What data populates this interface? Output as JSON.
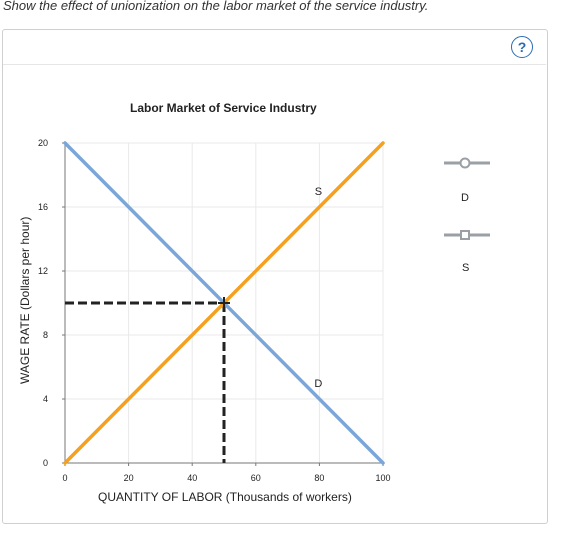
{
  "instruction": "Show the effect of unionization on the labor market of the service industry.",
  "help_label": "?",
  "legend": [
    {
      "label": "D",
      "color": "#8fb0d8",
      "marker": "circle"
    },
    {
      "label": "S",
      "color": "#f5a623",
      "marker": "square"
    }
  ],
  "colors": {
    "demand": "#7aa6d9",
    "supply": "#f5a01e",
    "equilibrium_lines": "#222222",
    "grid": "#e9e9e9"
  },
  "chart_data": {
    "type": "line",
    "title": "Labor Market of Service Industry",
    "xlabel": "QUANTITY OF LABOR (Thousands of workers)",
    "ylabel": "WAGE RATE (Dollars per hour)",
    "xlim": [
      0,
      100
    ],
    "ylim": [
      0,
      20
    ],
    "x_ticks": [
      0,
      20,
      40,
      60,
      80,
      100
    ],
    "y_ticks": [
      0,
      4,
      8,
      12,
      16,
      20
    ],
    "grid": true,
    "series": [
      {
        "name": "D",
        "points": [
          [
            0,
            20
          ],
          [
            100,
            0
          ]
        ]
      },
      {
        "name": "S",
        "points": [
          [
            0,
            0
          ],
          [
            100,
            20
          ]
        ]
      }
    ],
    "curve_labels": [
      {
        "text": "S",
        "x": 80,
        "y": 17
      },
      {
        "text": "D",
        "x": 80,
        "y": 5
      }
    ],
    "equilibrium": {
      "x": 50,
      "y": 10
    }
  }
}
